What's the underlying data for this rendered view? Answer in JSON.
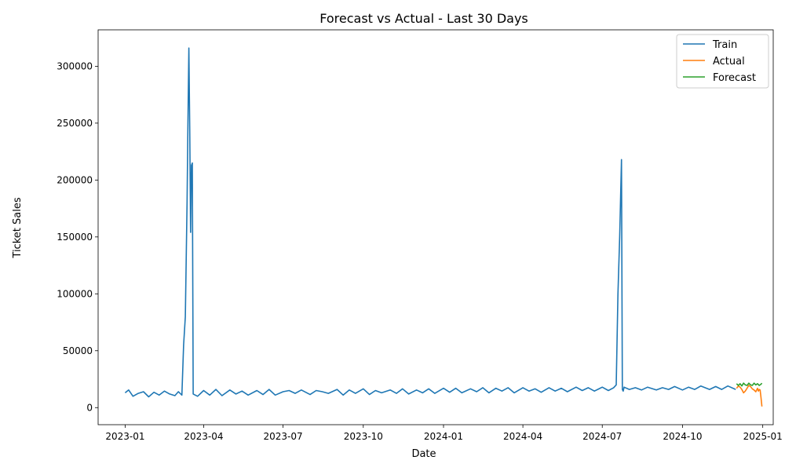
{
  "chart_data": {
    "type": "line",
    "title": "Forecast vs Actual - Last 30 Days",
    "xlabel": "Date",
    "ylabel": "Ticket Sales",
    "xlim": [
      "2022-12-01",
      "2025-01-13"
    ],
    "ylim": [
      -15000,
      332000
    ],
    "x_ticks": [
      "2023-01",
      "2023-04",
      "2023-07",
      "2023-10",
      "2024-01",
      "2024-04",
      "2024-07",
      "2024-10",
      "2025-01"
    ],
    "y_ticks": [
      0,
      50000,
      100000,
      150000,
      200000,
      250000,
      300000
    ],
    "grid": false,
    "legend": "top-right",
    "colors": {
      "Train": "#1f77b4",
      "Actual": "#ff7f0e",
      "Forecast": "#2ca02c"
    },
    "series": [
      {
        "name": "Train",
        "x": [
          "2023-01-01",
          "2023-01-05",
          "2023-01-10",
          "2023-01-16",
          "2023-01-22",
          "2023-01-28",
          "2023-02-03",
          "2023-02-09",
          "2023-02-15",
          "2023-02-21",
          "2023-02-27",
          "2023-03-03",
          "2023-03-05",
          "2023-03-07",
          "2023-03-09",
          "2023-03-11",
          "2023-03-13",
          "2023-03-14",
          "2023-03-15",
          "2023-03-16",
          "2023-03-17",
          "2023-03-18",
          "2023-03-19",
          "2023-03-20",
          "2023-03-25",
          "2023-04-01",
          "2023-04-08",
          "2023-04-15",
          "2023-04-22",
          "2023-05-01",
          "2023-05-08",
          "2023-05-15",
          "2023-05-22",
          "2023-06-01",
          "2023-06-08",
          "2023-06-15",
          "2023-06-22",
          "2023-07-01",
          "2023-07-08",
          "2023-07-15",
          "2023-07-22",
          "2023-08-01",
          "2023-08-08",
          "2023-08-15",
          "2023-08-22",
          "2023-09-01",
          "2023-09-08",
          "2023-09-15",
          "2023-09-22",
          "2023-10-01",
          "2023-10-08",
          "2023-10-15",
          "2023-10-22",
          "2023-11-01",
          "2023-11-08",
          "2023-11-15",
          "2023-11-22",
          "2023-12-01",
          "2023-12-08",
          "2023-12-15",
          "2023-12-22",
          "2024-01-01",
          "2024-01-08",
          "2024-01-15",
          "2024-01-22",
          "2024-02-01",
          "2024-02-08",
          "2024-02-15",
          "2024-02-22",
          "2024-03-01",
          "2024-03-08",
          "2024-03-15",
          "2024-03-22",
          "2024-04-01",
          "2024-04-08",
          "2024-04-15",
          "2024-04-22",
          "2024-05-01",
          "2024-05-08",
          "2024-05-15",
          "2024-05-22",
          "2024-06-01",
          "2024-06-08",
          "2024-06-15",
          "2024-06-22",
          "2024-07-01",
          "2024-07-08",
          "2024-07-14",
          "2024-07-17",
          "2024-07-18",
          "2024-07-19",
          "2024-07-21",
          "2024-07-23",
          "2024-07-24",
          "2024-07-25",
          "2024-07-26",
          "2024-08-01",
          "2024-08-08",
          "2024-08-15",
          "2024-08-22",
          "2024-09-01",
          "2024-09-08",
          "2024-09-15",
          "2024-09-22",
          "2024-10-01",
          "2024-10-08",
          "2024-10-15",
          "2024-10-22",
          "2024-11-01",
          "2024-11-08",
          "2024-11-15",
          "2024-11-22",
          "2024-12-01"
        ],
        "values": [
          13000,
          15500,
          10000,
          12500,
          14000,
          9500,
          13500,
          11000,
          14500,
          12000,
          10500,
          14000,
          12500,
          11000,
          55000,
          80000,
          180000,
          250000,
          316000,
          245000,
          154000,
          213000,
          215000,
          12000,
          10000,
          15000,
          11000,
          16000,
          10500,
          15500,
          12000,
          14500,
          11000,
          15000,
          11500,
          16000,
          11000,
          14000,
          15000,
          12500,
          15500,
          11500,
          15000,
          14000,
          12500,
          16000,
          11000,
          15500,
          12500,
          16500,
          11500,
          15000,
          13000,
          15500,
          12500,
          16500,
          12000,
          15500,
          13000,
          16500,
          12500,
          17000,
          13500,
          17000,
          13000,
          16500,
          14000,
          17500,
          13000,
          17000,
          14500,
          17500,
          13000,
          17500,
          14500,
          16500,
          13500,
          17500,
          14500,
          17000,
          14000,
          18000,
          15000,
          17500,
          14500,
          18000,
          15000,
          17500,
          20000,
          60000,
          100000,
          150000,
          218000,
          16000,
          14500,
          18000,
          16000,
          17500,
          15500,
          18000,
          15500,
          17500,
          16000,
          18500,
          15500,
          18000,
          16000,
          19000,
          16000,
          18500,
          16000,
          19000,
          16000
        ]
      },
      {
        "name": "Actual",
        "x": [
          "2024-12-02",
          "2024-12-04",
          "2024-12-06",
          "2024-12-08",
          "2024-12-10",
          "2024-12-12",
          "2024-12-14",
          "2024-12-16",
          "2024-12-18",
          "2024-12-20",
          "2024-12-22",
          "2024-12-24",
          "2024-12-26",
          "2024-12-27",
          "2024-12-28",
          "2024-12-29",
          "2024-12-30",
          "2024-12-31"
        ],
        "values": [
          17000,
          19000,
          18000,
          16000,
          13000,
          14500,
          17000,
          19500,
          18500,
          16500,
          15500,
          14000,
          17000,
          14500,
          16000,
          15500,
          9000,
          1000
        ]
      },
      {
        "name": "Forecast",
        "x": [
          "2024-12-02",
          "2024-12-04",
          "2024-12-06",
          "2024-12-08",
          "2024-12-10",
          "2024-12-12",
          "2024-12-14",
          "2024-12-16",
          "2024-12-18",
          "2024-12-20",
          "2024-12-22",
          "2024-12-24",
          "2024-12-26",
          "2024-12-28",
          "2024-12-30",
          "2024-12-31"
        ],
        "values": [
          21000,
          19500,
          21000,
          19000,
          21500,
          20000,
          19500,
          21500,
          20000,
          19500,
          21500,
          20000,
          21000,
          19500,
          20500,
          21500
        ]
      }
    ]
  }
}
